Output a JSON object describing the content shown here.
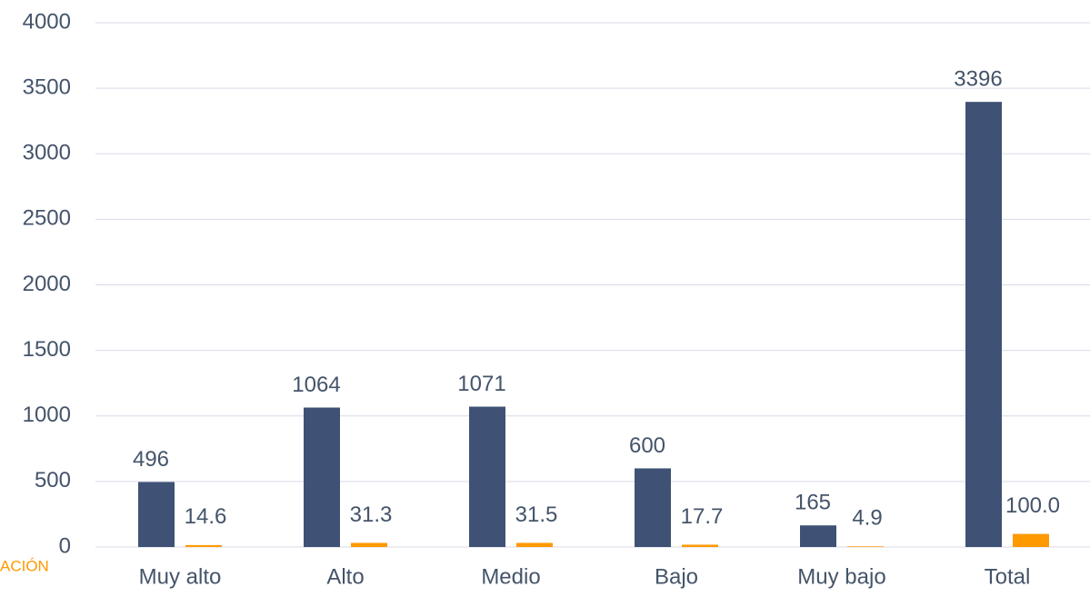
{
  "chart_data": {
    "type": "bar",
    "x_label": "ACIÓN",
    "categories": [
      "Muy alto",
      "Alto",
      "Medio",
      "Bajo",
      "Muy bajo",
      "Total"
    ],
    "series": [
      {
        "color": "#3f5275",
        "values": [
          496,
          1064,
          1071,
          600,
          165,
          3396
        ]
      },
      {
        "color": "#ff9900",
        "values": [
          14.6,
          31.3,
          31.5,
          17.7,
          4.9,
          100
        ],
        "value_labels": [
          "14.6",
          "31.3",
          "31.5",
          "17.7",
          "4.9",
          "100.0"
        ]
      }
    ],
    "ylim": [
      0,
      4000
    ],
    "yticks": [
      0,
      500,
      1000,
      1500,
      2000,
      2500,
      3000,
      3500,
      4000
    ],
    "grid": true
  }
}
